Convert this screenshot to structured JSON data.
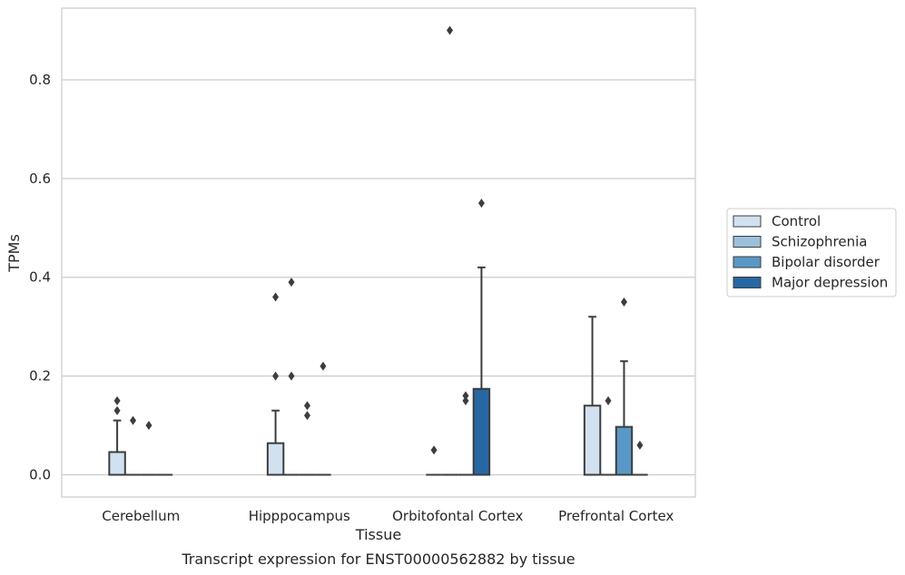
{
  "chart_data": {
    "type": "boxplot",
    "title": "",
    "caption": "Transcript expression for ENST00000562882 by tissue",
    "xlabel": "Tissue",
    "ylabel": "TPMs",
    "ylim": [
      -0.045,
      0.945
    ],
    "yticks": [
      0.0,
      0.2,
      0.4,
      0.6,
      0.8
    ],
    "ytick_labels": [
      "0.0",
      "0.2",
      "0.4",
      "0.6",
      "0.8"
    ],
    "grid": "horizontal",
    "legend_position": "right",
    "categories": [
      "Cerebellum",
      "Hipppocampus",
      "Orbitofontal Cortex",
      "Prefrontal Cortex"
    ],
    "series": [
      {
        "name": "Control",
        "color": "#d1e1f0",
        "boxes": [
          {
            "q1": 0.0,
            "median": 0.0,
            "q3": 0.046,
            "whisker_low": 0.0,
            "whisker_high": 0.11,
            "outliers": [
              0.13,
              0.15
            ]
          },
          {
            "q1": 0.0,
            "median": 0.0,
            "q3": 0.064,
            "whisker_low": 0.0,
            "whisker_high": 0.13,
            "outliers": [
              0.2,
              0.36
            ]
          },
          {
            "q1": 0.0,
            "median": 0.0,
            "q3": 0.0,
            "whisker_low": 0.0,
            "whisker_high": 0.0,
            "outliers": [
              0.05
            ]
          },
          {
            "q1": 0.0,
            "median": 0.0,
            "q3": 0.14,
            "whisker_low": 0.0,
            "whisker_high": 0.32,
            "outliers": []
          }
        ]
      },
      {
        "name": "Schizophrenia",
        "color": "#9ac0dc",
        "boxes": [
          {
            "q1": 0.0,
            "median": 0.0,
            "q3": 0.0,
            "whisker_low": 0.0,
            "whisker_high": 0.0,
            "outliers": [
              0.11
            ]
          },
          {
            "q1": 0.0,
            "median": 0.0,
            "q3": 0.0,
            "whisker_low": 0.0,
            "whisker_high": 0.0,
            "outliers": [
              0.2,
              0.39
            ]
          },
          {
            "q1": 0.0,
            "median": 0.0,
            "q3": 0.0,
            "whisker_low": 0.0,
            "whisker_high": 0.0,
            "outliers": [
              0.9
            ]
          },
          {
            "q1": 0.0,
            "median": 0.0,
            "q3": 0.0,
            "whisker_low": 0.0,
            "whisker_high": 0.0,
            "outliers": [
              0.15
            ]
          }
        ]
      },
      {
        "name": "Bipolar disorder",
        "color": "#5998c6",
        "boxes": [
          {
            "q1": 0.0,
            "median": 0.0,
            "q3": 0.0,
            "whisker_low": 0.0,
            "whisker_high": 0.0,
            "outliers": [
              0.1
            ]
          },
          {
            "q1": 0.0,
            "median": 0.0,
            "q3": 0.0,
            "whisker_low": 0.0,
            "whisker_high": 0.0,
            "outliers": [
              0.12,
              0.14
            ]
          },
          {
            "q1": 0.0,
            "median": 0.0,
            "q3": 0.0,
            "whisker_low": 0.0,
            "whisker_high": 0.0,
            "outliers": [
              0.15,
              0.16
            ]
          },
          {
            "q1": 0.0,
            "median": 0.0,
            "q3": 0.097,
            "whisker_low": 0.0,
            "whisker_high": 0.23,
            "outliers": [
              0.35
            ]
          }
        ]
      },
      {
        "name": "Major depression",
        "color": "#2767a4",
        "boxes": [
          {
            "q1": 0.0,
            "median": 0.0,
            "q3": 0.0,
            "whisker_low": 0.0,
            "whisker_high": 0.0,
            "outliers": []
          },
          {
            "q1": 0.0,
            "median": 0.0,
            "q3": 0.0,
            "whisker_low": 0.0,
            "whisker_high": 0.0,
            "outliers": [
              0.22
            ]
          },
          {
            "q1": 0.0,
            "median": 0.0,
            "q3": 0.174,
            "whisker_low": 0.0,
            "whisker_high": 0.42,
            "outliers": [
              0.55
            ]
          },
          {
            "q1": 0.0,
            "median": 0.0,
            "q3": 0.0,
            "whisker_low": 0.0,
            "whisker_high": 0.0,
            "outliers": [
              0.06
            ]
          }
        ]
      }
    ]
  }
}
